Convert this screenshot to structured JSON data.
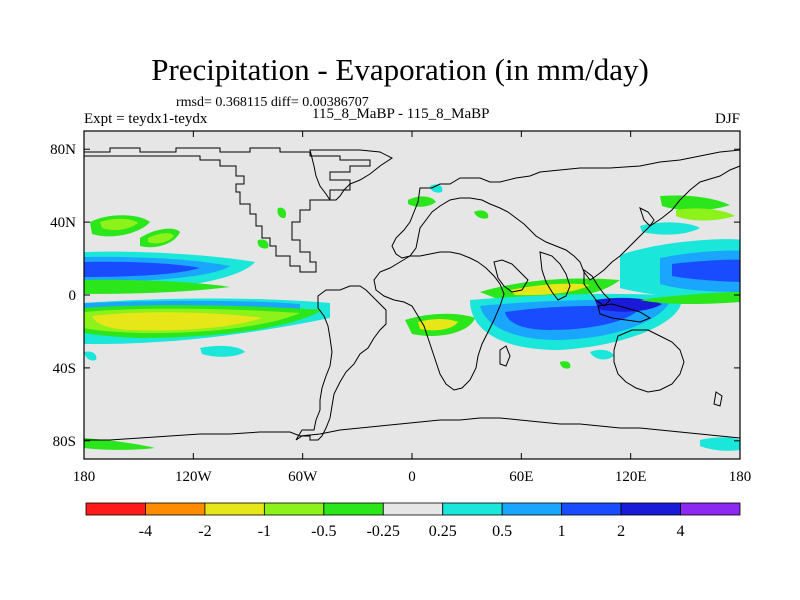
{
  "chart_data": {
    "type": "contour-map",
    "title": "Precipitation - Evaporation (in mm/day)",
    "stats_line": "rmsd= 0.368115 diff= 0.00386707",
    "left_label": "Expt = teydx1-teydx",
    "center_label": "115_8_MaBP - 115_8_MaBP",
    "right_label": "DJF",
    "x_ticks": [
      "180",
      "120W",
      "60W",
      "0",
      "60E",
      "120E",
      "180"
    ],
    "x_tick_values": [
      -180,
      -120,
      -60,
      0,
      60,
      120,
      180
    ],
    "y_ticks": [
      "80N",
      "40N",
      "0",
      "40S",
      "80S"
    ],
    "y_tick_values": [
      80,
      40,
      0,
      -40,
      -80
    ],
    "xlim": [
      -180,
      180
    ],
    "ylim": [
      -90,
      90
    ],
    "colorbar": {
      "colors": [
        "#ff1a1a",
        "#ff8c00",
        "#e6e619",
        "#8cf21a",
        "#2ae61a",
        "#e6e6e6",
        "#1ae6d9",
        "#1aa6ff",
        "#1a4cff",
        "#1a1ad9",
        "#8c2af2"
      ],
      "labels": [
        "-4",
        "-2",
        "-1",
        "-0.5",
        "-0.25",
        "0.25",
        "0.5",
        "1",
        "2",
        "4"
      ]
    },
    "fields": [
      {
        "name": "south-pacific-positive-band",
        "lon_range": [
          -180,
          -20
        ],
        "lat_range": [
          -10,
          -4
        ],
        "level_index": 9
      },
      {
        "name": "north-pacific-itcz-band",
        "lon_range": [
          -180,
          -110
        ],
        "lat_range": [
          11,
          17
        ],
        "level_index": 9
      },
      {
        "name": "indian-ocean-positive-core",
        "lon_range": [
          40,
          120
        ],
        "lat_range": [
          -12,
          -6
        ],
        "level_index": 9
      },
      {
        "name": "west-pacific-positive-band",
        "lon_range": [
          130,
          180
        ],
        "lat_range": [
          10,
          14
        ],
        "level_index": 9
      },
      {
        "name": "south-pacific-negative-band",
        "lon_range": [
          -180,
          -40
        ],
        "lat_range": [
          -18,
          -8
        ],
        "level_index": 2
      },
      {
        "name": "indian-ocean-negative-band",
        "lon_range": [
          60,
          110
        ],
        "lat_range": [
          -5,
          2
        ],
        "level_index": 2
      }
    ]
  }
}
